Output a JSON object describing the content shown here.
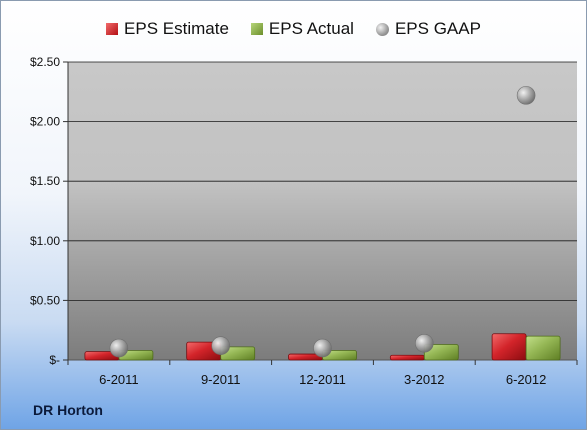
{
  "chart_data": {
    "type": "bar",
    "categories": [
      "6-2011",
      "9-2011",
      "12-2011",
      "3-2012",
      "6-2012"
    ],
    "series": [
      {
        "name": "EPS Estimate",
        "kind": "bar",
        "color": "#c8161c",
        "values": [
          0.07,
          0.15,
          0.05,
          0.04,
          0.22
        ]
      },
      {
        "name": "EPS Actual",
        "kind": "bar",
        "color": "#8db04a",
        "values": [
          0.08,
          0.11,
          0.08,
          0.13,
          0.2
        ]
      },
      {
        "name": "EPS GAAP",
        "kind": "marker",
        "color": "#a8a8a8",
        "values": [
          0.1,
          0.12,
          0.1,
          0.14,
          2.22
        ]
      }
    ],
    "ylim": [
      0,
      2.5
    ],
    "yticks": [
      0,
      0.5,
      1.0,
      1.5,
      2.0,
      2.5
    ],
    "ytick_labels": [
      "$-",
      "$0.50",
      "$1.00",
      "$1.50",
      "$2.00",
      "$2.50"
    ],
    "grid": true,
    "legend_position": "top"
  },
  "footer": {
    "company": "DR Horton"
  }
}
